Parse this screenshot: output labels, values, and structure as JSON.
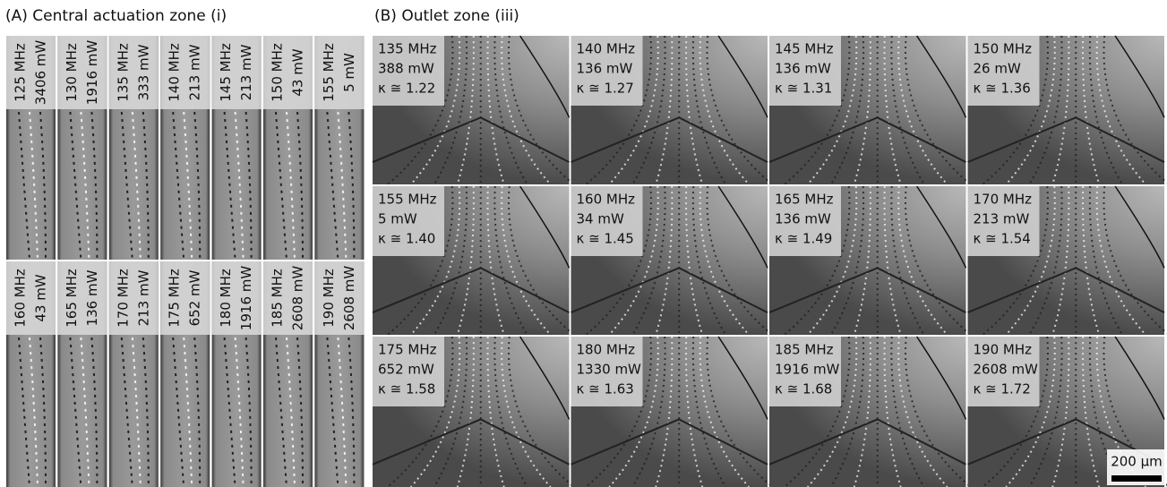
{
  "panel_a": {
    "title": "(A) Central actuation zone (i)",
    "rows": [
      [
        [
          "125 MHz",
          "3406 mW"
        ],
        [
          "130 MHz",
          "1916 mW"
        ],
        [
          "135 MHz",
          "333 mW"
        ],
        [
          "140 MHz",
          "213 mW"
        ],
        [
          "145 MHz",
          "213 mW"
        ],
        [
          "150 MHz",
          "43 mW"
        ],
        [
          "155 MHz",
          "5 mW"
        ]
      ],
      [
        [
          "160 MHz",
          "43 mW"
        ],
        [
          "165 MHz",
          "136 mW"
        ],
        [
          "170 MHz",
          "213 mW"
        ],
        [
          "175 MHz",
          "652 mW"
        ],
        [
          "180 MHz",
          "1916 mW"
        ],
        [
          "185 MHz",
          "2608 mW"
        ],
        [
          "190 MHz",
          "2608 mW"
        ]
      ]
    ]
  },
  "panel_b": {
    "title": "(B) Outlet zone (iii)",
    "tiles": [
      [
        "135 MHz",
        "388 mW",
        "κ ≅ 1.22"
      ],
      [
        "140 MHz",
        "136 mW",
        "κ ≅ 1.27"
      ],
      [
        "145 MHz",
        "136 mW",
        "κ ≅ 1.31"
      ],
      [
        "150 MHz",
        "26 mW",
        "κ ≅ 1.36"
      ],
      [
        "155 MHz",
        "5 mW",
        "κ ≅ 1.40"
      ],
      [
        "160 MHz",
        "34 mW",
        "κ ≅ 1.45"
      ],
      [
        "165 MHz",
        "136 mW",
        "κ ≅ 1.49"
      ],
      [
        "170 MHz",
        "213 mW",
        "κ ≅ 1.54"
      ],
      [
        "175 MHz",
        "652 mW",
        "κ ≅ 1.58"
      ],
      [
        "180 MHz",
        "1330 mW",
        "κ ≅ 1.63"
      ],
      [
        "185 MHz",
        "1916 mW",
        "κ ≅ 1.68"
      ],
      [
        "190 MHz",
        "2608 mW",
        "κ ≅ 1.72"
      ]
    ],
    "scale_bar": "200 µm"
  }
}
